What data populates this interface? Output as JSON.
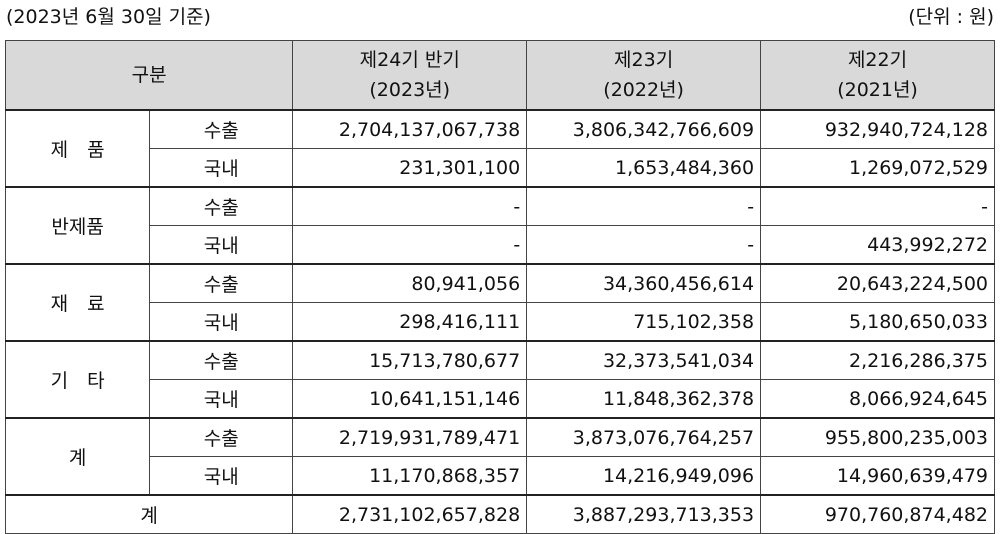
{
  "caption": {
    "date_note": "(2023년 6월 30일 기준)",
    "unit_note": "(단위 : 원)"
  },
  "header": {
    "category": "구분",
    "periods": [
      {
        "line1": "제24기 반기",
        "line2": "(2023년)"
      },
      {
        "line1": "제23기",
        "line2": "(2022년)"
      },
      {
        "line1": "제22기",
        "line2": "(2021년)"
      }
    ]
  },
  "groups": [
    {
      "name": "제　품",
      "rows": [
        {
          "type": "수출",
          "values": [
            "2,704,137,067,738",
            "3,806,342,766,609",
            "932,940,724,128"
          ]
        },
        {
          "type": "국내",
          "values": [
            "231,301,100",
            "1,653,484,360",
            "1,269,072,529"
          ]
        }
      ]
    },
    {
      "name": "반제품",
      "rows": [
        {
          "type": "수출",
          "values": [
            "-",
            "-",
            "-"
          ]
        },
        {
          "type": "국내",
          "values": [
            "-",
            "-",
            "443,992,272"
          ]
        }
      ]
    },
    {
      "name": "재　료",
      "rows": [
        {
          "type": "수출",
          "values": [
            "80,941,056",
            "34,360,456,614",
            "20,643,224,500"
          ]
        },
        {
          "type": "국내",
          "values": [
            "298,416,111",
            "715,102,358",
            "5,180,650,033"
          ]
        }
      ]
    },
    {
      "name": "기　타",
      "rows": [
        {
          "type": "수출",
          "values": [
            "15,713,780,677",
            "32,373,541,034",
            "2,216,286,375"
          ]
        },
        {
          "type": "국내",
          "values": [
            "10,641,151,146",
            "11,848,362,378",
            "8,066,924,645"
          ]
        }
      ]
    },
    {
      "name": "계",
      "rows": [
        {
          "type": "수출",
          "values": [
            "2,719,931,789,471",
            "3,873,076,764,257",
            "955,800,235,003"
          ]
        },
        {
          "type": "국내",
          "values": [
            "11,170,868,357",
            "14,216,949,096",
            "14,960,639,479"
          ]
        }
      ]
    }
  ],
  "total": {
    "label": "계",
    "values": [
      "2,731,102,657,828",
      "3,887,293,713,353",
      "970,760,874,482"
    ]
  }
}
